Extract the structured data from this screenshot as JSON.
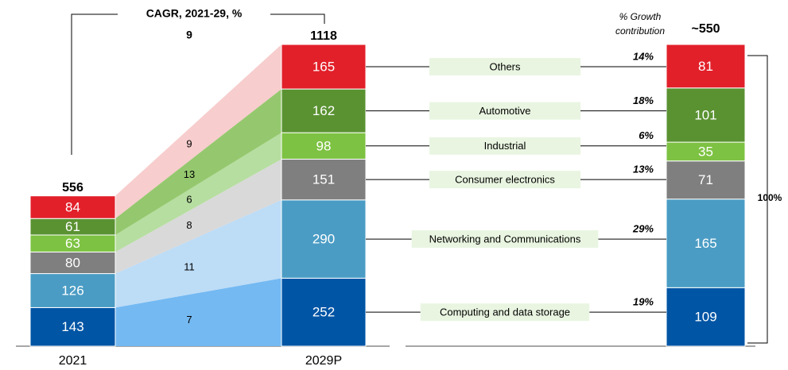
{
  "chart_data": {
    "type": "stacked_bar_growth",
    "cagr_title": "CAGR, 2021-29, %",
    "cagr_total": 9,
    "categories": [
      "2021",
      "2029P"
    ],
    "totals": [
      556,
      1118
    ],
    "ylim": [
      0,
      1118
    ],
    "growth_title": [
      "% Growth",
      "contribution"
    ],
    "growth_total": "~550",
    "growth_share_total": "100%",
    "series": [
      {
        "name": "Computing and data storage",
        "color": "#0055a5",
        "band_color": "#74b9f2",
        "values": [
          143,
          252
        ],
        "cagr": 7,
        "growth": 109,
        "share": "19%"
      },
      {
        "name": "Networking and Communications",
        "color": "#4a9cc4",
        "band_color": "#bddcf6",
        "values": [
          126,
          290
        ],
        "cagr": 11,
        "growth": 165,
        "share": "29%"
      },
      {
        "name": "Consumer electronics",
        "color": "#7f7f7f",
        "band_color": "#d9d9d9",
        "values": [
          80,
          151
        ],
        "cagr": 8,
        "growth": 71,
        "share": "13%"
      },
      {
        "name": "Industrial",
        "color": "#7dc242",
        "band_color": "#b6dea0",
        "values": [
          63,
          98
        ],
        "cagr": 6,
        "growth": 35,
        "share": "6%"
      },
      {
        "name": "Automotive",
        "color": "#5a9232",
        "band_color": "#95c86e",
        "values": [
          61,
          162
        ],
        "cagr": 13,
        "growth": 101,
        "share": "18%"
      },
      {
        "name": "Others",
        "color": "#e2202a",
        "band_color": "#f7cdcd",
        "values": [
          84,
          165
        ],
        "cagr": 9,
        "growth": 81,
        "share": "14%"
      }
    ]
  }
}
